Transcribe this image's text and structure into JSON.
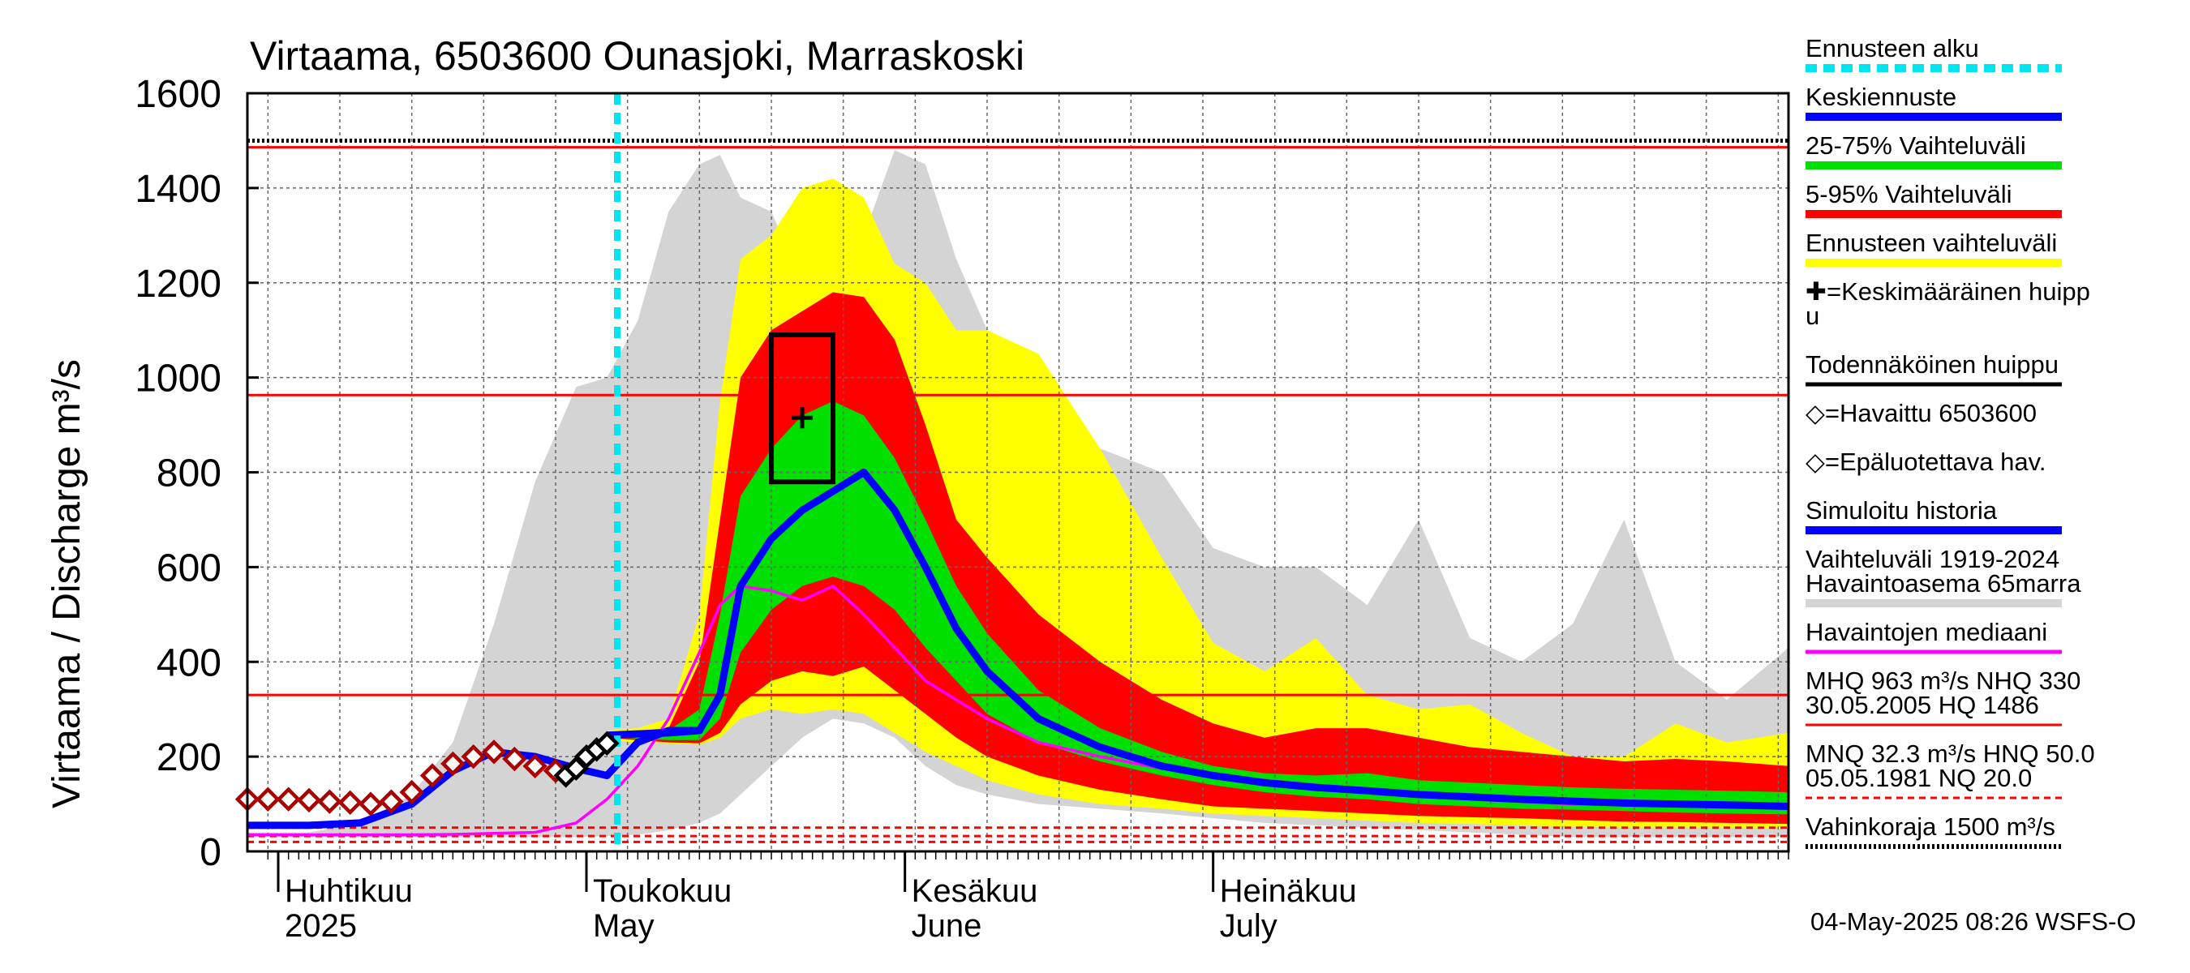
{
  "chart_data": {
    "type": "area",
    "title": "Virtaama, 6503600 Ounasjoki, Marraskoski",
    "ylabel": "Virtaama / Discharge   m³/s",
    "ylim": [
      0,
      1600
    ],
    "yticks": [
      0,
      200,
      400,
      600,
      800,
      1000,
      1200,
      1400,
      1600
    ],
    "xlim": [
      "2025-03-29",
      "2025-08-26"
    ],
    "xlabels": [
      {
        "date": "2025-04-01",
        "line1": "Huhtikuu",
        "line2": "2025"
      },
      {
        "date": "2025-05-01",
        "line1": "Toukokuu",
        "line2": "May"
      },
      {
        "date": "2025-06-01",
        "line1": "Kesäkuu",
        "line2": "June"
      },
      {
        "date": "2025-07-01",
        "line1": "Heinäkuu",
        "line2": "July"
      }
    ],
    "forecast_start": "2025-05-04",
    "x": [
      "2025-03-29",
      "2025-04-04",
      "2025-04-09",
      "2025-04-14",
      "2025-04-18",
      "2025-04-22",
      "2025-04-26",
      "2025-04-30",
      "2025-05-03",
      "2025-05-06",
      "2025-05-09",
      "2025-05-12",
      "2025-05-14",
      "2025-05-16",
      "2025-05-19",
      "2025-05-22",
      "2025-05-25",
      "2025-05-28",
      "2025-05-31",
      "2025-06-03",
      "2025-06-06",
      "2025-06-09",
      "2025-06-14",
      "2025-06-20",
      "2025-06-26",
      "2025-07-01",
      "2025-07-06",
      "2025-07-11",
      "2025-07-16",
      "2025-07-21",
      "2025-07-26",
      "2025-07-31",
      "2025-08-05",
      "2025-08-10",
      "2025-08-15",
      "2025-08-20",
      "2025-08-26"
    ],
    "series": [
      {
        "name": "Vaihteluväli 1919-2024 Havaintoasema 65marra",
        "color": "#d4d4d4",
        "low": [
          30,
          30,
          30,
          30,
          30,
          30,
          30,
          30,
          32,
          35,
          45,
          60,
          80,
          120,
          180,
          240,
          280,
          270,
          240,
          180,
          140,
          120,
          100,
          90,
          80,
          70,
          60,
          55,
          50,
          45,
          40,
          35,
          30,
          30,
          30,
          30,
          30
        ],
        "high": [
          40,
          40,
          60,
          120,
          230,
          480,
          780,
          980,
          1000,
          1120,
          1350,
          1450,
          1470,
          1380,
          1350,
          1200,
          1120,
          1300,
          1480,
          1450,
          1250,
          1100,
          900,
          850,
          800,
          640,
          600,
          600,
          520,
          700,
          450,
          400,
          480,
          700,
          400,
          320,
          430
        ]
      },
      {
        "name": "Ennusteen vaihteluväli",
        "color": "#ffff00",
        "low": [
          null,
          null,
          null,
          null,
          null,
          null,
          null,
          null,
          235,
          230,
          228,
          225,
          240,
          280,
          300,
          290,
          300,
          290,
          250,
          210,
          180,
          150,
          120,
          100,
          90,
          80,
          75,
          70,
          65,
          60,
          58,
          55,
          52,
          50,
          50,
          50,
          48
        ],
        "high": [
          null,
          null,
          null,
          null,
          null,
          null,
          null,
          null,
          255,
          260,
          280,
          500,
          950,
          1250,
          1300,
          1400,
          1420,
          1380,
          1240,
          1200,
          1100,
          1100,
          1050,
          850,
          620,
          440,
          380,
          450,
          330,
          300,
          310,
          250,
          200,
          200,
          270,
          230,
          250
        ]
      },
      {
        "name": "5-95% Vaihteluväli",
        "color": "#ff0000",
        "low": [
          null,
          null,
          null,
          null,
          null,
          null,
          null,
          null,
          240,
          235,
          230,
          228,
          250,
          310,
          360,
          380,
          370,
          390,
          340,
          290,
          240,
          200,
          160,
          130,
          110,
          95,
          90,
          85,
          80,
          75,
          72,
          70,
          66,
          63,
          62,
          60,
          58
        ],
        "high": [
          null,
          null,
          null,
          null,
          null,
          null,
          null,
          null,
          250,
          255,
          260,
          400,
          700,
          1000,
          1100,
          1140,
          1180,
          1170,
          1080,
          900,
          700,
          620,
          500,
          400,
          320,
          270,
          240,
          260,
          260,
          240,
          220,
          210,
          200,
          190,
          195,
          190,
          180
        ]
      },
      {
        "name": "25-75% Vaihteluväli",
        "color": "#00e000",
        "low": [
          null,
          null,
          null,
          null,
          null,
          null,
          null,
          null,
          242,
          238,
          235,
          235,
          280,
          420,
          510,
          560,
          580,
          560,
          510,
          430,
          360,
          290,
          230,
          190,
          160,
          140,
          125,
          115,
          110,
          100,
          95,
          90,
          88,
          85,
          82,
          80,
          78
        ],
        "high": [
          null,
          null,
          null,
          null,
          null,
          null,
          null,
          null,
          248,
          252,
          255,
          300,
          500,
          750,
          850,
          920,
          950,
          920,
          830,
          700,
          560,
          460,
          340,
          260,
          210,
          180,
          165,
          160,
          165,
          150,
          145,
          140,
          135,
          132,
          130,
          128,
          125
        ]
      },
      {
        "name": "Keskiennuste",
        "color": "#0000ff",
        "values": [
          null,
          null,
          null,
          null,
          null,
          null,
          null,
          null,
          245,
          248,
          250,
          255,
          330,
          560,
          660,
          720,
          760,
          800,
          720,
          600,
          470,
          380,
          280,
          220,
          180,
          160,
          145,
          135,
          128,
          120,
          115,
          110,
          106,
          102,
          100,
          98,
          95
        ]
      },
      {
        "name": "Simuloitu historia",
        "color": "#0000ff",
        "values": [
          55,
          55,
          60,
          100,
          170,
          210,
          200,
          175,
          160,
          230,
          255,
          255,
          null,
          null,
          null,
          null,
          null,
          null,
          null,
          null,
          null,
          null,
          null,
          null,
          null,
          null,
          null,
          null,
          null,
          null,
          null,
          null,
          null,
          null,
          null,
          null,
          null
        ]
      },
      {
        "name": "Havaintojen mediaani",
        "color": "#ff00ff",
        "values": [
          35,
          35,
          35,
          35,
          36,
          38,
          40,
          60,
          110,
          180,
          280,
          420,
          520,
          560,
          550,
          530,
          560,
          500,
          430,
          360,
          320,
          280,
          230,
          200,
          175,
          160,
          150,
          140,
          130,
          120,
          110,
          105,
          100,
          98,
          96,
          95,
          94
        ]
      }
    ],
    "observed": {
      "name": "Havaittu 6503600",
      "points": [
        [
          "2025-04-29",
          160
        ],
        [
          "2025-04-30",
          175
        ],
        [
          "2025-05-01",
          200
        ],
        [
          "2025-05-02",
          215
        ],
        [
          "2025-05-03",
          228
        ]
      ]
    },
    "unreliable": {
      "name": "Epäluotettava hav.",
      "points": [
        [
          "2025-03-29",
          110
        ],
        [
          "2025-03-31",
          110
        ],
        [
          "2025-04-02",
          110
        ],
        [
          "2025-04-04",
          108
        ],
        [
          "2025-04-06",
          105
        ],
        [
          "2025-04-08",
          103
        ],
        [
          "2025-04-10",
          100
        ],
        [
          "2025-04-12",
          105
        ],
        [
          "2025-04-14",
          125
        ],
        [
          "2025-04-16",
          160
        ],
        [
          "2025-04-18",
          185
        ],
        [
          "2025-04-20",
          200
        ],
        [
          "2025-04-22",
          210
        ],
        [
          "2025-04-24",
          195
        ],
        [
          "2025-04-26",
          180
        ],
        [
          "2025-04-28",
          170
        ]
      ]
    },
    "peak_box": {
      "x0": "2025-05-19",
      "x1": "2025-05-25",
      "y0": 780,
      "y1": 1090
    },
    "mean_peak": {
      "x": "2025-05-22",
      "y": 915
    },
    "hlines": [
      {
        "y": 1500,
        "color": "#000000",
        "style": "dotted"
      },
      {
        "y": 1486,
        "color": "#ff0000",
        "style": "solid"
      },
      {
        "y": 963,
        "color": "#ff0000",
        "style": "solid"
      },
      {
        "y": 330,
        "color": "#ff0000",
        "style": "solid"
      },
      {
        "y": 50,
        "color": "#ff0000",
        "style": "dashed"
      },
      {
        "y": 32.3,
        "color": "#ff0000",
        "style": "dashed"
      },
      {
        "y": 20,
        "color": "#ff0000",
        "style": "dashed"
      }
    ]
  },
  "legend": [
    {
      "label": "Ennusteen alku",
      "color": "#00e5ee",
      "style": "dash"
    },
    {
      "label": "Keskiennuste",
      "color": "#0000ff",
      "style": "line"
    },
    {
      "label": "25-75% Vaihteluväli",
      "color": "#00e000",
      "style": "line"
    },
    {
      "label": "5-95% Vaihteluväli",
      "color": "#ff0000",
      "style": "line"
    },
    {
      "label": "Ennusteen vaihteluväli",
      "color": "#ffff00",
      "style": "line"
    },
    {
      "label": "✚=Keskimääräinen huipp",
      "label2": "u",
      "color": "",
      "style": "none"
    },
    {
      "label": "Todennäköinen huippu",
      "color": "#000000",
      "style": "line"
    },
    {
      "label": "◇=Havaittu 6503600",
      "color": "",
      "style": "none"
    },
    {
      "label": "◇=Epäluotettava hav.",
      "color": "",
      "style": "none"
    },
    {
      "label": "Simuloitu historia",
      "color": "#0000ff",
      "style": "line"
    },
    {
      "label": "Vaihteluväli 1919-2024",
      "label2": " Havaintoasema 65marra",
      "color": "#d4d4d4",
      "style": "line"
    },
    {
      "label": "Havaintojen mediaani",
      "color": "#ff00ff",
      "style": "line"
    },
    {
      "label": "MHQ  963 m³/s NHQ  330",
      "label2": "30.05.2005 HQ 1486",
      "color": "#ff0000",
      "style": "line"
    },
    {
      "label": "MNQ 32.3 m³/s HNQ 50.0",
      "label2": "05.05.1981 NQ 20.0",
      "color": "#ff0000",
      "style": "dashed"
    },
    {
      "label": "Vahinkoraja 1500 m³/s",
      "color": "#000000",
      "style": "dotted"
    }
  ],
  "footer": "04-May-2025 08:26 WSFS-O"
}
